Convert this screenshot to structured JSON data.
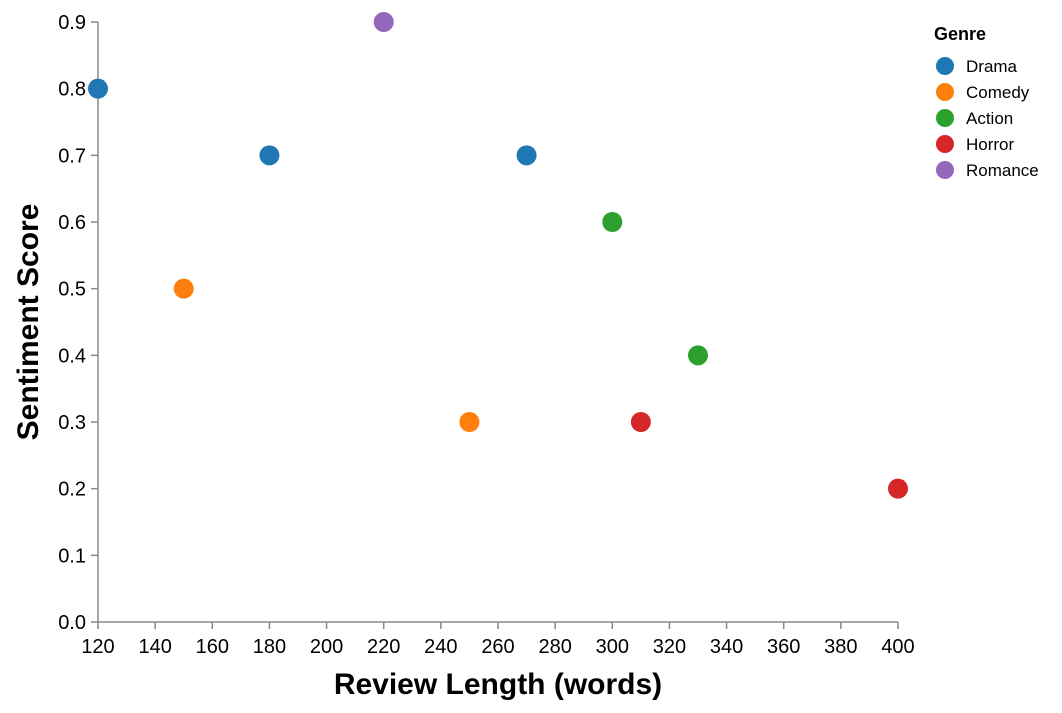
{
  "chart_data": {
    "type": "scatter",
    "xlabel": "Review Length (words)",
    "ylabel": "Sentiment Score",
    "xlim": [
      120,
      400
    ],
    "ylim": [
      0,
      0.9
    ],
    "x_ticks": [
      "120",
      "140",
      "160",
      "180",
      "200",
      "220",
      "240",
      "260",
      "280",
      "300",
      "320",
      "340",
      "360",
      "380",
      "400"
    ],
    "y_ticks": [
      "0.0",
      "0.1",
      "0.2",
      "0.3",
      "0.4",
      "0.5",
      "0.6",
      "0.7",
      "0.8",
      "0.9"
    ],
    "grid": false,
    "legend": {
      "title": "Genre",
      "placement": "right",
      "entries": [
        {
          "name": "Drama",
          "color": "#1f77b4"
        },
        {
          "name": "Comedy",
          "color": "#ff7f0e"
        },
        {
          "name": "Action",
          "color": "#2ca02c"
        },
        {
          "name": "Horror",
          "color": "#d62728"
        },
        {
          "name": "Romance",
          "color": "#9467bd"
        }
      ]
    },
    "series": [
      {
        "name": "Drama",
        "color": "#1f77b4",
        "points": [
          {
            "x": 120,
            "y": 0.8
          },
          {
            "x": 180,
            "y": 0.7
          },
          {
            "x": 270,
            "y": 0.7
          }
        ]
      },
      {
        "name": "Comedy",
        "color": "#ff7f0e",
        "points": [
          {
            "x": 150,
            "y": 0.5
          },
          {
            "x": 250,
            "y": 0.3
          }
        ]
      },
      {
        "name": "Action",
        "color": "#2ca02c",
        "points": [
          {
            "x": 300,
            "y": 0.6
          },
          {
            "x": 330,
            "y": 0.4
          }
        ]
      },
      {
        "name": "Horror",
        "color": "#d62728",
        "points": [
          {
            "x": 310,
            "y": 0.3
          },
          {
            "x": 400,
            "y": 0.2
          }
        ]
      },
      {
        "name": "Romance",
        "color": "#9467bd",
        "points": [
          {
            "x": 220,
            "y": 0.9
          }
        ]
      }
    ]
  }
}
